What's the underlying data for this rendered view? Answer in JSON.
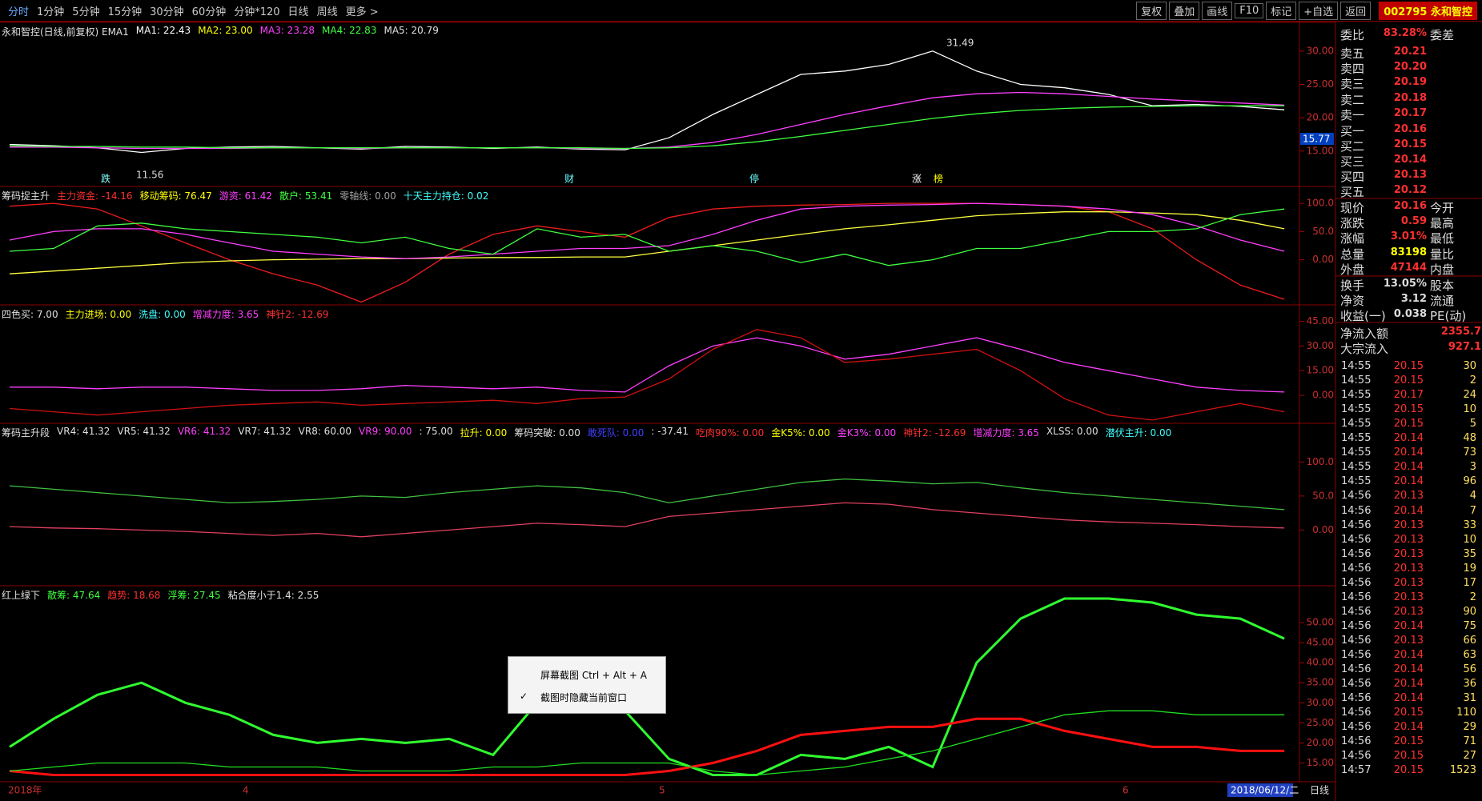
{
  "toolbar": {
    "tabs": [
      "分时",
      "1分钟",
      "5分钟",
      "15分钟",
      "30分钟",
      "60分钟",
      "分钟*120",
      "日线",
      "周线",
      "更多 >"
    ],
    "buttons": [
      "复权",
      "叠加",
      "画线",
      "F10",
      "标记",
      "+自选",
      "返回"
    ],
    "stock": "002795 永和智控"
  },
  "panes": [
    {
      "legend": [
        {
          "text": "永和智控(日线,前复权) EMA1",
          "color": "#e0e0e0"
        },
        {
          "text": "MA1: 22.43",
          "color": "#ffffff"
        },
        {
          "text": "MA2: 23.00",
          "color": "#ffff00"
        },
        {
          "text": "MA3: 23.28",
          "color": "#ff40ff"
        },
        {
          "text": "MA4: 22.83",
          "color": "#40ff40"
        },
        {
          "text": "MA5: 20.79",
          "color": "#e0e0e0"
        }
      ],
      "ylim": [
        9.7,
        34.3
      ],
      "yticks": [
        {
          "value": 30,
          "label": "30.00"
        },
        {
          "value": 25,
          "label": "25.00"
        },
        {
          "value": 20,
          "label": "20.00"
        },
        {
          "value": 15,
          "label": "15.00"
        }
      ],
      "series": [
        {
          "color": "#ffffff",
          "values": [
            16,
            15.8,
            15.5,
            14.8,
            15.4,
            15.6,
            15.7,
            15.5,
            15.3,
            15.7,
            15.6,
            15.4,
            15.6,
            15.3,
            15.2,
            17,
            20.5,
            23.5,
            26.5,
            27,
            28,
            30,
            27,
            25,
            24.5,
            23.5,
            21.8,
            22,
            21.7,
            21.2
          ]
        },
        {
          "color": "#ff40ff",
          "values": [
            15.6,
            15.6,
            15.5,
            15.4,
            15.4,
            15.4,
            15.5,
            15.5,
            15.4,
            15.5,
            15.5,
            15.5,
            15.5,
            15.4,
            15.4,
            15.6,
            16.3,
            17.5,
            19,
            20.5,
            21.8,
            23,
            23.6,
            23.8,
            23.6,
            23.2,
            22.8,
            22.5,
            22.2,
            21.9
          ]
        },
        {
          "color": "#40ff40",
          "values": [
            15.8,
            15.7,
            15.7,
            15.6,
            15.6,
            15.5,
            15.5,
            15.5,
            15.5,
            15.5,
            15.5,
            15.5,
            15.5,
            15.5,
            15.4,
            15.5,
            15.8,
            16.4,
            17.2,
            18.1,
            19,
            19.9,
            20.6,
            21.1,
            21.4,
            21.6,
            21.7,
            21.8,
            21.8,
            21.8
          ]
        }
      ]
    },
    {
      "legend": [
        {
          "text": "筹码捉主升",
          "color": "#e0e0e0"
        },
        {
          "text": "主力资金: -14.16",
          "color": "#ff3030"
        },
        {
          "text": "移动筹码: 76.47",
          "color": "#ffff00"
        },
        {
          "text": "游资: 61.42",
          "color": "#ff40ff"
        },
        {
          "text": "散户: 53.41",
          "color": "#40ff40"
        },
        {
          "text": "零轴线: 0.00",
          "color": "#a0a0a0"
        },
        {
          "text": "十天主力持仓: 0.02",
          "color": "#40ffff"
        }
      ],
      "ylim": [
        -80,
        130
      ],
      "yticks": [
        {
          "value": 100,
          "label": "100.0"
        },
        {
          "value": 50,
          "label": "50.0"
        },
        {
          "value": 0,
          "label": "0.00"
        }
      ],
      "series": [
        {
          "color": "#ee1c1c",
          "values": [
            95,
            100,
            90,
            60,
            30,
            0,
            -25,
            -45,
            -75,
            -40,
            10,
            45,
            60,
            50,
            40,
            75,
            90,
            95,
            97,
            98,
            100,
            100,
            100,
            98,
            95,
            85,
            55,
            0,
            -45,
            -70
          ]
        },
        {
          "color": "#ffff40",
          "values": [
            -25,
            -20,
            -15,
            -10,
            -5,
            -2,
            0,
            1,
            2,
            2,
            3,
            4,
            4,
            5,
            5,
            15,
            25,
            35,
            45,
            55,
            62,
            70,
            78,
            82,
            85,
            85,
            83,
            80,
            70,
            55
          ]
        },
        {
          "color": "#ff40ff",
          "values": [
            35,
            50,
            55,
            55,
            45,
            30,
            15,
            10,
            5,
            2,
            5,
            10,
            15,
            20,
            20,
            25,
            45,
            70,
            90,
            95,
            97,
            98,
            100,
            98,
            95,
            90,
            80,
            60,
            35,
            15
          ]
        },
        {
          "color": "#40ff40",
          "values": [
            15,
            20,
            60,
            65,
            55,
            50,
            45,
            40,
            30,
            40,
            20,
            10,
            55,
            40,
            45,
            15,
            25,
            15,
            -5,
            10,
            -10,
            0,
            20,
            20,
            35,
            50,
            50,
            55,
            80,
            90
          ]
        }
      ]
    },
    {
      "legend": [
        {
          "text": "四色买: 7.00",
          "color": "#e0e0e0"
        },
        {
          "text": "主力进场: 0.00",
          "color": "#ffff00"
        },
        {
          "text": "洗盘: 0.00",
          "color": "#40ffff"
        },
        {
          "text": "增减力度: 3.65",
          "color": "#ff40ff"
        },
        {
          "text": "神针2: -12.69",
          "color": "#ff3030"
        }
      ],
      "ylim": [
        -17,
        55
      ],
      "yticks": [
        {
          "value": 45,
          "label": "45.00"
        },
        {
          "value": 30,
          "label": "30.00"
        },
        {
          "value": 15,
          "label": "15.00"
        },
        {
          "value": 0,
          "label": "0.00"
        }
      ],
      "series": [
        {
          "color": "#ff40ff",
          "values": [
            5,
            5,
            4,
            5,
            5,
            4,
            3,
            3,
            4,
            6,
            5,
            4,
            5,
            3,
            2,
            18,
            30,
            35,
            30,
            22,
            25,
            30,
            35,
            28,
            20,
            15,
            10,
            5,
            3,
            2
          ]
        },
        {
          "color": "#d01010",
          "values": [
            -8,
            -10,
            -12,
            -10,
            -8,
            -6,
            -5,
            -4,
            -6,
            -5,
            -4,
            -3,
            -5,
            -2,
            -1,
            10,
            28,
            40,
            35,
            20,
            22,
            25,
            28,
            15,
            -2,
            -12,
            -15,
            -10,
            -5,
            -10
          ]
        }
      ]
    },
    {
      "legend": [
        {
          "text": "筹码主升段",
          "color": "#e0e0e0"
        },
        {
          "text": "VR4: 41.32",
          "color": "#e0e0e0"
        },
        {
          "text": "VR5: 41.32",
          "color": "#e0e0e0"
        },
        {
          "text": "VR6: 41.32",
          "color": "#ff40ff"
        },
        {
          "text": "VR7: 41.32",
          "color": "#e0e0e0"
        },
        {
          "text": "VR8: 60.00",
          "color": "#e0e0e0"
        },
        {
          "text": "VR9: 90.00",
          "color": "#ff40ff"
        },
        {
          "text": ": 75.00",
          "color": "#e0e0e0"
        },
        {
          "text": "拉升: 0.00",
          "color": "#ffff00"
        },
        {
          "text": "筹码突破: 0.00",
          "color": "#e0e0e0"
        },
        {
          "text": "敢死队: 0.00",
          "color": "#4040ff"
        },
        {
          "text": ": -37.41",
          "color": "#e0e0e0"
        },
        {
          "text": "吃肉90%: 0.00",
          "color": "#ff3030"
        },
        {
          "text": "金K5%: 0.00",
          "color": "#ffff00"
        },
        {
          "text": "金K3%: 0.00",
          "color": "#ff40ff"
        },
        {
          "text": "神针2: -12.69",
          "color": "#ff3030"
        },
        {
          "text": "增减力度: 3.65",
          "color": "#ff40ff"
        },
        {
          "text": "XLSS: 0.00",
          "color": "#e0e0e0"
        },
        {
          "text": "潜伏主升: 0.00",
          "color": "#40ffff"
        }
      ],
      "ylim": [
        -82,
        157
      ],
      "yticks": [
        {
          "value": 100,
          "label": "100.0"
        },
        {
          "value": 50,
          "label": "50.0"
        },
        {
          "value": 0,
          "label": "0.00"
        }
      ],
      "series": [
        {
          "color": "#40c040",
          "values": [
            65,
            60,
            55,
            50,
            45,
            40,
            42,
            45,
            50,
            48,
            55,
            60,
            65,
            62,
            55,
            40,
            50,
            60,
            70,
            75,
            72,
            68,
            70,
            62,
            55,
            50,
            45,
            40,
            35,
            30
          ]
        },
        {
          "color": "#e04060",
          "values": [
            5,
            3,
            2,
            0,
            -2,
            -5,
            -8,
            -5,
            -10,
            -5,
            0,
            5,
            10,
            8,
            5,
            20,
            25,
            30,
            35,
            40,
            38,
            30,
            25,
            20,
            15,
            12,
            10,
            8,
            5,
            3
          ]
        }
      ]
    },
    {
      "legend": [
        {
          "text": "红上绿下",
          "color": "#e0e0e0"
        },
        {
          "text": "散筹: 47.64",
          "color": "#40ff40"
        },
        {
          "text": "趋势: 18.68",
          "color": "#ff3030"
        },
        {
          "text": "浮筹: 27.45",
          "color": "#40ff40"
        },
        {
          "text": "粘合度小于1.4: 2.55",
          "color": "#e0e0e0"
        }
      ],
      "ylim": [
        10.3,
        59.2
      ],
      "yticks": [
        {
          "value": 50,
          "label": "50.00"
        },
        {
          "value": 45,
          "label": "45.00"
        },
        {
          "value": 40,
          "label": "40.00"
        },
        {
          "value": 35,
          "label": "35.00"
        },
        {
          "value": 30,
          "label": "30.00"
        },
        {
          "value": 25,
          "label": "25.00"
        },
        {
          "value": 20,
          "label": "20.00"
        },
        {
          "value": 15,
          "label": "15.00"
        }
      ],
      "series": [
        {
          "color": "#30ff30",
          "values": [
            19,
            26,
            32,
            35,
            30,
            27,
            22,
            20,
            21,
            20,
            21,
            17,
            30,
            29,
            28,
            16,
            12,
            12,
            17,
            16,
            19,
            14,
            40,
            51,
            56,
            56,
            55,
            52,
            51,
            46
          ]
        },
        {
          "color": "#ff1010",
          "values": [
            13,
            12,
            12,
            12,
            12,
            12,
            12,
            12,
            12,
            12,
            12,
            12,
            12,
            12,
            12,
            13,
            15,
            18,
            22,
            23,
            24,
            24,
            26,
            26,
            23,
            21,
            19,
            19,
            18,
            18
          ]
        },
        {
          "color": "#20e020",
          "values": [
            13,
            14,
            15,
            15,
            15,
            14,
            14,
            14,
            13,
            13,
            13,
            14,
            14,
            15,
            15,
            15,
            13,
            12,
            13,
            14,
            16,
            18,
            21,
            24,
            27,
            28,
            28,
            27,
            27,
            27
          ]
        }
      ]
    }
  ],
  "annotations": {
    "high": "31.49",
    "low": "11.56",
    "last": "15.77",
    "markers": [
      "跌",
      "财",
      "停",
      "涨",
      "榜"
    ]
  },
  "datebar": {
    "labels": [
      "2018年",
      "4",
      "5",
      "6"
    ],
    "current": "2018/06/12/二",
    "period": "日线"
  },
  "popup": {
    "items": [
      "屏幕截图 Ctrl + Alt + A",
      "截图时隐藏当前窗口"
    ]
  },
  "quote": {
    "rows": [
      {
        "label": "委比",
        "value": "83.28%",
        "label2": "委差"
      },
      {
        "label": "卖五",
        "value": "20.21"
      },
      {
        "label": "卖四",
        "value": "20.20"
      },
      {
        "label": "卖三",
        "value": "20.19"
      },
      {
        "label": "卖二",
        "value": "20.18"
      },
      {
        "label": "卖一",
        "value": "20.17"
      },
      {
        "label": "买一",
        "value": "20.16"
      },
      {
        "label": "买二",
        "value": "20.15"
      },
      {
        "label": "买三",
        "value": "20.14"
      },
      {
        "label": "买四",
        "value": "20.13"
      },
      {
        "label": "买五",
        "value": "20.12"
      },
      {
        "label": "现价",
        "value": "20.16",
        "label2": "今开"
      },
      {
        "label": "涨跌",
        "value": "0.59",
        "label2": "最高"
      },
      {
        "label": "涨幅",
        "value": "3.01%",
        "label2": "最低"
      },
      {
        "label": "总量",
        "value": "83198",
        "label2": "量比"
      },
      {
        "label": "外盘",
        "value": "47144",
        "label2": "内盘"
      },
      {
        "label": "换手",
        "value": "13.05%",
        "label2": "股本"
      },
      {
        "label": "净资",
        "value": "3.12",
        "label2": "流通"
      },
      {
        "label": "收益(一)",
        "value": "0.038",
        "label2": "PE(动)"
      },
      {
        "label": "净流入额",
        "value": "2355.7"
      },
      {
        "label": "大宗流入",
        "value": "927.1"
      }
    ]
  },
  "trades": [
    [
      "14:55",
      "20.15",
      "30"
    ],
    [
      "14:55",
      "20.15",
      "2"
    ],
    [
      "14:55",
      "20.17",
      "24"
    ],
    [
      "14:55",
      "20.15",
      "10"
    ],
    [
      "14:55",
      "20.15",
      "5"
    ],
    [
      "14:55",
      "20.14",
      "48"
    ],
    [
      "14:55",
      "20.14",
      "73"
    ],
    [
      "14:55",
      "20.14",
      "3"
    ],
    [
      "14:55",
      "20.14",
      "96"
    ],
    [
      "14:56",
      "20.13",
      "4"
    ],
    [
      "14:56",
      "20.14",
      "7"
    ],
    [
      "14:56",
      "20.13",
      "33"
    ],
    [
      "14:56",
      "20.13",
      "10"
    ],
    [
      "14:56",
      "20.13",
      "35"
    ],
    [
      "14:56",
      "20.13",
      "19"
    ],
    [
      "14:56",
      "20.13",
      "17"
    ],
    [
      "14:56",
      "20.13",
      "2"
    ],
    [
      "14:56",
      "20.13",
      "90"
    ],
    [
      "14:56",
      "20.14",
      "75"
    ],
    [
      "14:56",
      "20.13",
      "66"
    ],
    [
      "14:56",
      "20.14",
      "63"
    ],
    [
      "14:56",
      "20.14",
      "56"
    ],
    [
      "14:56",
      "20.14",
      "36"
    ],
    [
      "14:56",
      "20.14",
      "31"
    ],
    [
      "14:56",
      "20.15",
      "110"
    ],
    [
      "14:56",
      "20.14",
      "29"
    ],
    [
      "14:56",
      "20.15",
      "71"
    ],
    [
      "14:56",
      "20.15",
      "27"
    ],
    [
      "14:57",
      "20.15",
      "1523"
    ]
  ]
}
